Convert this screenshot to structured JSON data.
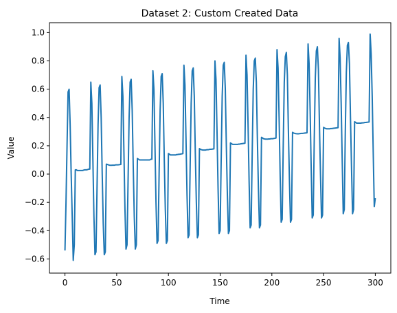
{
  "chart_data": {
    "type": "line",
    "title": "Dataset 2: Custom Created Data",
    "xlabel": "Time",
    "ylabel": "Value",
    "xlim": [
      -15,
      315
    ],
    "ylim": [
      -0.7,
      1.07
    ],
    "xticks": [
      0,
      50,
      100,
      150,
      200,
      250,
      300
    ],
    "yticks": [
      -0.6,
      -0.4,
      -0.2,
      0.0,
      0.2,
      0.4,
      0.6,
      0.8,
      1.0
    ],
    "xtick_labels": [
      "0",
      "50",
      "100",
      "150",
      "200",
      "250",
      "300"
    ],
    "ytick_labels": [
      "−0.6",
      "−0.4",
      "−0.2",
      "0.0",
      "0.2",
      "0.4",
      "0.6",
      "0.8",
      "1.0"
    ],
    "grid": false,
    "series": [
      {
        "color": "#1f77b4",
        "x": [
          0,
          1,
          2,
          3,
          4,
          5,
          6,
          7,
          8,
          9,
          10,
          11,
          12,
          13,
          14,
          15,
          16,
          17,
          18,
          19,
          20,
          21,
          22,
          23,
          24,
          25,
          26,
          27,
          28,
          29,
          30,
          31,
          32,
          33,
          34,
          35,
          36,
          37,
          38,
          39,
          40,
          41,
          42,
          43,
          44,
          45,
          46,
          47,
          48,
          49,
          50,
          51,
          52,
          53,
          54,
          55,
          56,
          57,
          58,
          59,
          60,
          61,
          62,
          63,
          64,
          65,
          66,
          67,
          68,
          69,
          70,
          71,
          72,
          73,
          74,
          75,
          76,
          77,
          78,
          79,
          80,
          81,
          82,
          83,
          84,
          85,
          86,
          87,
          88,
          89,
          90,
          91,
          92,
          93,
          94,
          95,
          96,
          97,
          98,
          99,
          100,
          101,
          102,
          103,
          104,
          105,
          106,
          107,
          108,
          109,
          110,
          111,
          112,
          113,
          114,
          115,
          116,
          117,
          118,
          119,
          120,
          121,
          122,
          123,
          124,
          125,
          126,
          127,
          128,
          129,
          130,
          131,
          132,
          133,
          134,
          135,
          136,
          137,
          138,
          139,
          140,
          141,
          142,
          143,
          144,
          145,
          146,
          147,
          148,
          149,
          150,
          151,
          152,
          153,
          154,
          155,
          156,
          157,
          158,
          159,
          160,
          161,
          162,
          163,
          164,
          165,
          166,
          167,
          168,
          169,
          170,
          171,
          172,
          173,
          174,
          175,
          176,
          177,
          178,
          179,
          180,
          181,
          182,
          183,
          184,
          185,
          186,
          187,
          188,
          189,
          190,
          191,
          192,
          193,
          194,
          195,
          196,
          197,
          198,
          199,
          200,
          201,
          202,
          203,
          204,
          205,
          206,
          207,
          208,
          209,
          210,
          211,
          212,
          213,
          214,
          215,
          216,
          217,
          218,
          219,
          220,
          221,
          222,
          223,
          224,
          225,
          226,
          227,
          228,
          229,
          230,
          231,
          232,
          233,
          234,
          235,
          236,
          237,
          238,
          239,
          240,
          241,
          242,
          243,
          244,
          245,
          246,
          247,
          248,
          249,
          250,
          251,
          252,
          253,
          254,
          255,
          256,
          257,
          258,
          259,
          260,
          261,
          262,
          263,
          264,
          265,
          266,
          267,
          268,
          269,
          270,
          271,
          272,
          273,
          274,
          275,
          276,
          277,
          278,
          279,
          280,
          281,
          282,
          283,
          284,
          285,
          286,
          287,
          288,
          289,
          290,
          291,
          292,
          293,
          294,
          295,
          296,
          297,
          298,
          299,
          300
        ],
        "y": [
          -0.54,
          -0.2,
          0.2,
          0.58,
          0.6,
          0.35,
          0.0,
          -0.3,
          -0.61,
          -0.5,
          0.03,
          0.03,
          0.025,
          0.025,
          0.025,
          0.025,
          0.025,
          0.025,
          0.028,
          0.03,
          0.03,
          0.03,
          0.032,
          0.035,
          0.035,
          0.65,
          0.5,
          0.1,
          -0.3,
          -0.57,
          -0.55,
          -0.1,
          0.35,
          0.61,
          0.63,
          0.4,
          0.0,
          -0.35,
          -0.57,
          -0.55,
          0.07,
          0.068,
          0.065,
          0.063,
          0.062,
          0.062,
          0.063,
          0.063,
          0.063,
          0.065,
          0.065,
          0.065,
          0.066,
          0.067,
          0.068,
          0.69,
          0.55,
          0.15,
          -0.25,
          -0.53,
          -0.5,
          -0.05,
          0.4,
          0.65,
          0.67,
          0.45,
          0.05,
          -0.3,
          -0.53,
          -0.5,
          0.11,
          0.105,
          0.1,
          0.1,
          0.1,
          0.1,
          0.1,
          0.1,
          0.1,
          0.1,
          0.1,
          0.1,
          0.1,
          0.105,
          0.105,
          0.73,
          0.6,
          0.2,
          -0.2,
          -0.49,
          -0.47,
          0.0,
          0.45,
          0.69,
          0.71,
          0.5,
          0.1,
          -0.25,
          -0.49,
          -0.47,
          0.145,
          0.14,
          0.135,
          0.135,
          0.135,
          0.135,
          0.135,
          0.135,
          0.138,
          0.138,
          0.14,
          0.14,
          0.142,
          0.143,
          0.145,
          0.77,
          0.63,
          0.25,
          -0.15,
          -0.45,
          -0.43,
          0.05,
          0.5,
          0.73,
          0.75,
          0.55,
          0.15,
          -0.2,
          -0.45,
          -0.43,
          0.18,
          0.175,
          0.172,
          0.17,
          0.17,
          0.17,
          0.17,
          0.172,
          0.172,
          0.173,
          0.175,
          0.175,
          0.176,
          0.177,
          0.178,
          0.8,
          0.67,
          0.3,
          -0.1,
          -0.42,
          -0.4,
          0.1,
          0.55,
          0.77,
          0.79,
          0.6,
          0.2,
          -0.15,
          -0.42,
          -0.4,
          0.22,
          0.215,
          0.21,
          0.21,
          0.21,
          0.21,
          0.21,
          0.21,
          0.212,
          0.212,
          0.214,
          0.215,
          0.216,
          0.217,
          0.218,
          0.84,
          0.7,
          0.35,
          -0.05,
          -0.38,
          -0.36,
          0.15,
          0.6,
          0.8,
          0.82,
          0.65,
          0.25,
          -0.1,
          -0.38,
          -0.36,
          0.26,
          0.255,
          0.25,
          0.248,
          0.247,
          0.247,
          0.247,
          0.248,
          0.248,
          0.25,
          0.25,
          0.25,
          0.252,
          0.253,
          0.255,
          0.88,
          0.75,
          0.4,
          0.0,
          -0.34,
          -0.32,
          0.2,
          0.65,
          0.83,
          0.86,
          0.7,
          0.3,
          -0.05,
          -0.34,
          -0.32,
          0.295,
          0.29,
          0.288,
          0.286,
          0.285,
          0.285,
          0.285,
          0.286,
          0.287,
          0.288,
          0.288,
          0.289,
          0.29,
          0.291,
          0.292,
          0.92,
          0.78,
          0.45,
          0.05,
          -0.31,
          -0.29,
          0.25,
          0.68,
          0.87,
          0.9,
          0.74,
          0.35,
          0.0,
          -0.31,
          -0.29,
          0.33,
          0.325,
          0.322,
          0.32,
          0.32,
          0.32,
          0.32,
          0.322,
          0.322,
          0.323,
          0.324,
          0.325,
          0.326,
          0.327,
          0.328,
          0.96,
          0.82,
          0.5,
          0.1,
          -0.28,
          -0.25,
          0.3,
          0.72,
          0.91,
          0.93,
          0.78,
          0.4,
          0.05,
          -0.28,
          -0.25,
          0.37,
          0.365,
          0.36,
          0.36,
          0.36,
          0.36,
          0.36,
          0.362,
          0.362,
          0.363,
          0.365,
          0.365,
          0.366,
          0.367,
          0.368,
          0.99,
          0.85,
          0.55,
          0.15,
          -0.23,
          -0.17
        ]
      }
    ]
  }
}
